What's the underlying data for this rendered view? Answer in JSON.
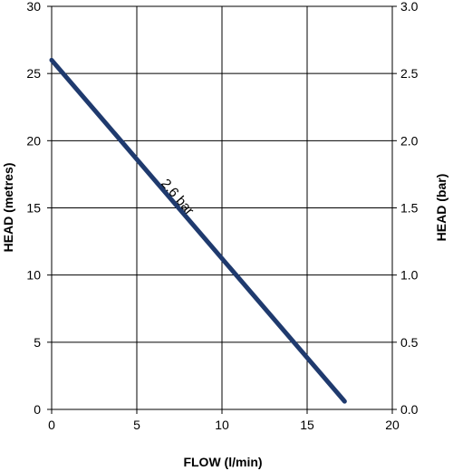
{
  "chart_data": {
    "type": "line",
    "xlabel": "FLOW (l/min)",
    "ylabel": "HEAD (metres)",
    "y2label": "HEAD (bar)",
    "xlim": [
      0,
      20
    ],
    "ylim": [
      0,
      30
    ],
    "y2lim": [
      0.0,
      3.0
    ],
    "x_ticks": [
      "0",
      "5",
      "10",
      "15",
      "20"
    ],
    "y_ticks": [
      "0",
      "5",
      "10",
      "15",
      "20",
      "25",
      "30"
    ],
    "y2_ticks": [
      "0.0",
      "0.5",
      "1.0",
      "1.5",
      "2.0",
      "2.5",
      "3.0"
    ],
    "grid": true,
    "series": [
      {
        "x": [
          0,
          17.2
        ],
        "y": [
          26,
          0.6
        ],
        "color": "#1f3a6e"
      }
    ],
    "annotations": [
      {
        "text": "2.6 bar",
        "x": 7.2,
        "y": 15.6
      }
    ]
  }
}
